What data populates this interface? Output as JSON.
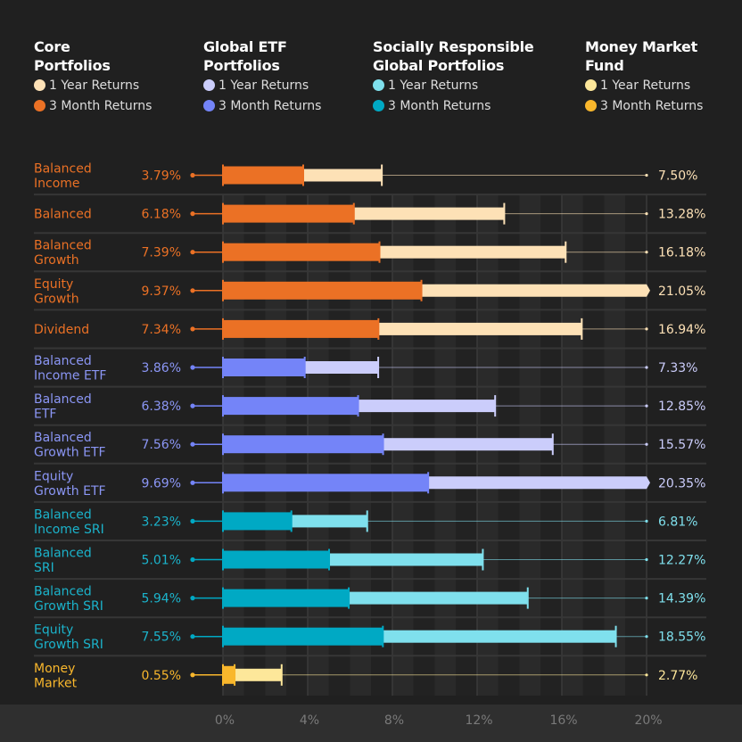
{
  "legend": [
    {
      "title": "Core\nPortfolios",
      "items": [
        {
          "label": "1 Year Returns",
          "color": "#FDE1B6"
        },
        {
          "label": "3 Month Returns",
          "color": "#EB7125"
        }
      ]
    },
    {
      "title": "Global ETF\nPortfolios",
      "items": [
        {
          "label": "1 Year Returns",
          "color": "#CBCDFB"
        },
        {
          "label": "3 Month Returns",
          "color": "#7484F8"
        }
      ]
    },
    {
      "title": "Socially Responsible\nGlobal Portfolios",
      "items": [
        {
          "label": "1 Year Returns",
          "color": "#7FE0ED"
        },
        {
          "label": "3 Month Returns",
          "color": "#00A9C4"
        }
      ]
    },
    {
      "title": "Money Market\nFund",
      "items": [
        {
          "label": "1 Year Returns",
          "color": "#FDE79A"
        },
        {
          "label": "3 Month Returns",
          "color": "#F9B72C"
        }
      ]
    }
  ],
  "chart_data": {
    "type": "bar",
    "orientation": "horizontal",
    "title": "",
    "xlabel": "",
    "ylabel": "",
    "xlim": [
      0,
      20
    ],
    "x_ticks": [
      "0%",
      "4%",
      "8%",
      "12%",
      "16%",
      "20%"
    ],
    "grid": true,
    "categories": [
      "Balanced\nIncome",
      "Balanced",
      "Balanced\nGrowth",
      "Equity\nGrowth",
      "Dividend",
      "Balanced\nIncome ETF",
      "Balanced\nETF",
      "Balanced\nGrowth ETF",
      "Equity\nGrowth ETF",
      "Balanced\nIncome SRI",
      "Balanced\nSRI",
      "Balanced\nGrowth SRI",
      "Equity\nGrowth SRI",
      "Money\nMarket"
    ],
    "groups": [
      "Core Portfolios",
      "Core Portfolios",
      "Core Portfolios",
      "Core Portfolios",
      "Core Portfolios",
      "Global ETF Portfolios",
      "Global ETF Portfolios",
      "Global ETF Portfolios",
      "Global ETF Portfolios",
      "Socially Responsible Global Portfolios",
      "Socially Responsible Global Portfolios",
      "Socially Responsible Global Portfolios",
      "Socially Responsible Global Portfolios",
      "Money Market Fund"
    ],
    "series": [
      {
        "name": "3 Month Returns",
        "values": [
          3.79,
          6.18,
          7.39,
          9.37,
          7.34,
          3.86,
          6.38,
          7.56,
          9.69,
          3.23,
          5.01,
          5.94,
          7.55,
          0.55
        ],
        "labels": [
          "3.79%",
          "6.18%",
          "7.39%",
          "9.37%",
          "7.34%",
          "3.86%",
          "6.38%",
          "7.56%",
          "9.69%",
          "3.23%",
          "5.01%",
          "5.94%",
          "7.55%",
          "0.55%"
        ]
      },
      {
        "name": "1 Year Returns",
        "values": [
          7.5,
          13.28,
          16.18,
          21.05,
          16.94,
          7.33,
          12.85,
          15.57,
          20.35,
          6.81,
          12.27,
          14.39,
          18.55,
          2.77
        ],
        "labels": [
          "7.50%",
          "13.28%",
          "16.18%",
          "21.05%",
          "16.94%",
          "7.33%",
          "12.85%",
          "15.57%",
          "20.35%",
          "6.81%",
          "12.27%",
          "14.39%",
          "18.55%",
          "2.77%"
        ]
      }
    ],
    "colors": {
      "Core Portfolios": {
        "dark": "#EB7125",
        "light": "#FDE1B6",
        "text": "#EB7125",
        "right_text": "#FDE1B6"
      },
      "Global ETF Portfolios": {
        "dark": "#7484F8",
        "light": "#CBCDFB",
        "text": "#8B96F5",
        "right_text": "#CBCDFB"
      },
      "Socially Responsible Global Portfolios": {
        "dark": "#00A9C4",
        "light": "#7FE0ED",
        "text": "#1BB3CB",
        "right_text": "#7FE0ED"
      },
      "Money Market Fund": {
        "dark": "#F9B72C",
        "light": "#FDE79A",
        "text": "#F9B72C",
        "right_text": "#FDE79A"
      }
    }
  }
}
